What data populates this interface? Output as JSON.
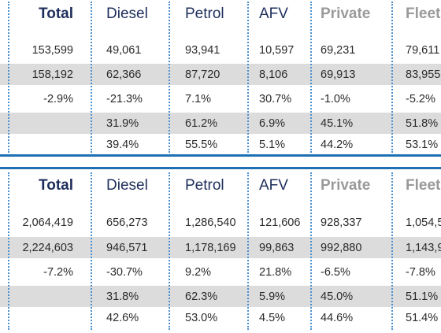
{
  "top_table": {
    "headers": [
      "Total",
      "Diesel",
      "Petrol",
      "AFV",
      "Private",
      "Fleet"
    ],
    "rows": [
      [
        "153,599",
        "49,061",
        "93,941",
        "10,597",
        "69,231",
        "79,611"
      ],
      [
        "158,192",
        "62,366",
        "87,720",
        "8,106",
        "69,913",
        "83,955"
      ],
      [
        "-2.9%",
        "-21.3%",
        "7.1%",
        "30.7%",
        "-1.0%",
        "-5.2%"
      ],
      [
        "",
        "31.9%",
        "61.2%",
        "6.9%",
        "45.1%",
        "51.8%"
      ],
      [
        "",
        "39.4%",
        "55.5%",
        "5.1%",
        "44.2%",
        "53.1%"
      ]
    ]
  },
  "bottom_table": {
    "headers": [
      "Total",
      "Diesel",
      "Petrol",
      "AFV",
      "Private",
      "Fleet"
    ],
    "rows": [
      [
        "2,064,419",
        "656,273",
        "1,286,540",
        "121,606",
        "928,337",
        "1,054,5"
      ],
      [
        "2,224,603",
        "946,571",
        "1,178,169",
        "99,863",
        "992,880",
        "1,143,9"
      ],
      [
        "-7.2%",
        "-30.7%",
        "9.2%",
        "21.8%",
        "-6.5%",
        "-7.8%"
      ],
      [
        "",
        "31.8%",
        "62.3%",
        "5.9%",
        "45.0%",
        "51.1%"
      ],
      [
        "",
        "42.6%",
        "53.0%",
        "4.5%",
        "44.6%",
        "51.4%"
      ]
    ]
  },
  "colors": {
    "header_text": "#1f2f5c",
    "muted_header": "#9a9a9a",
    "shaded_row": "#dcdcdc",
    "rule": "#1f6fb3",
    "dotted_divider": "#4a90d0"
  }
}
